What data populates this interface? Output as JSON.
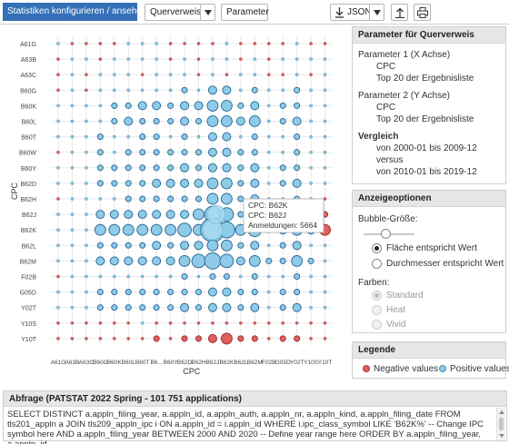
{
  "toolbar": {
    "title": "Statistiken konfigurieren / ansehen",
    "querverweis_label": "Querverweis",
    "parameter_label": "Parameter",
    "export_label": "JSON"
  },
  "chart_data": {
    "type": "scatter",
    "subtype": "bubble-matrix",
    "xlabel": "CPC",
    "ylabel": "CPC",
    "y_categories": [
      "A61G",
      "A63B",
      "A63C",
      "B60G",
      "B60K",
      "B60L",
      "B60T",
      "B60W",
      "B60Y",
      "B62D",
      "B62H",
      "B62J",
      "B62K",
      "B62L",
      "B62M",
      "F02B",
      "G05D",
      "Y02T",
      "Y10S",
      "Y10T"
    ],
    "x_categories": [
      "A61G",
      "A63B",
      "A63C",
      "B60G",
      "B60K",
      "B60L",
      "B60T",
      "B6...",
      "B60Y",
      "B62D",
      "B62H",
      "B62J",
      "B62K",
      "B62L",
      "B62M",
      "F02B",
      "G05D",
      "Y02T",
      "Y10S",
      "Y10T"
    ],
    "grid": true,
    "size_scale": 10,
    "series": [
      {
        "name": "Negative values",
        "color": "#e06060"
      },
      {
        "name": "Positive values",
        "color": "#8ecbe8"
      }
    ],
    "values": [
      [
        1,
        -1,
        -1,
        -1,
        -1,
        1,
        1,
        1,
        -1,
        -1,
        -1,
        -1,
        1,
        -1,
        -1,
        -1,
        -1,
        1,
        -1,
        -1
      ],
      [
        -1,
        1,
        1,
        -1,
        1,
        1,
        1,
        1,
        -1,
        1,
        -1,
        1,
        1,
        -1,
        1,
        -1,
        1,
        1,
        1,
        1
      ],
      [
        -1,
        1,
        -1,
        1,
        1,
        1,
        -1,
        1,
        1,
        1,
        -1,
        1,
        -1,
        1,
        1,
        -1,
        -1,
        1,
        -1,
        1
      ],
      [
        -1,
        1,
        -1,
        1,
        1,
        1,
        1,
        1,
        1,
        2,
        1,
        3,
        3,
        1,
        2,
        1,
        1,
        2,
        1,
        1
      ],
      [
        1,
        1,
        1,
        1,
        2,
        2,
        3,
        3,
        2,
        3,
        3,
        4,
        4,
        2,
        3,
        1,
        2,
        2,
        1,
        1
      ],
      [
        1,
        1,
        1,
        1,
        2,
        3,
        2,
        2,
        2,
        3,
        2,
        4,
        4,
        3,
        4,
        1,
        2,
        3,
        1,
        1
      ],
      [
        1,
        1,
        1,
        2,
        1,
        1,
        2,
        2,
        1,
        2,
        1,
        3,
        3,
        1,
        2,
        1,
        1,
        2,
        1,
        1
      ],
      [
        -1,
        1,
        1,
        2,
        1,
        2,
        2,
        2,
        2,
        2,
        2,
        3,
        3,
        2,
        2,
        1,
        1,
        2,
        1,
        1
      ],
      [
        1,
        1,
        1,
        2,
        2,
        2,
        2,
        2,
        2,
        3,
        2,
        3,
        3,
        2,
        3,
        1,
        2,
        2,
        1,
        1
      ],
      [
        1,
        1,
        1,
        2,
        2,
        2,
        2,
        3,
        3,
        3,
        3,
        4,
        4,
        2,
        3,
        1,
        2,
        3,
        1,
        1
      ],
      [
        -1,
        1,
        1,
        1,
        1,
        2,
        2,
        2,
        2,
        2,
        2,
        4,
        4,
        2,
        3,
        1,
        1,
        2,
        1,
        -1
      ],
      [
        1,
        1,
        1,
        3,
        3,
        3,
        3,
        3,
        3,
        3,
        4,
        6,
        5,
        2,
        4,
        2,
        2,
        3,
        2,
        -2
      ],
      [
        1,
        1,
        1,
        4,
        4,
        4,
        4,
        4,
        4,
        5,
        4,
        9,
        6,
        4,
        5,
        2,
        3,
        4,
        3,
        -4
      ],
      [
        1,
        1,
        1,
        2,
        2,
        2,
        2,
        3,
        2,
        3,
        3,
        4,
        4,
        2,
        3,
        1,
        2,
        3,
        1,
        1
      ],
      [
        1,
        1,
        1,
        3,
        3,
        3,
        3,
        3,
        3,
        4,
        5,
        6,
        5,
        3,
        4,
        2,
        2,
        4,
        2,
        1
      ],
      [
        -1,
        1,
        1,
        1,
        1,
        1,
        1,
        1,
        1,
        2,
        1,
        2,
        2,
        1,
        2,
        1,
        1,
        2,
        1,
        1
      ],
      [
        1,
        1,
        1,
        2,
        2,
        2,
        2,
        2,
        2,
        2,
        2,
        3,
        3,
        2,
        2,
        1,
        2,
        2,
        1,
        1
      ],
      [
        1,
        1,
        1,
        2,
        2,
        2,
        2,
        2,
        2,
        3,
        2,
        3,
        3,
        2,
        3,
        1,
        2,
        3,
        1,
        1
      ],
      [
        -1,
        -1,
        -1,
        -1,
        -1,
        -1,
        1,
        -1,
        -1,
        -1,
        -1,
        -1,
        -1,
        -1,
        -1,
        -1,
        -1,
        -1,
        -1,
        -1
      ],
      [
        -1,
        -1,
        -1,
        -1,
        -1,
        -1,
        -1,
        -2,
        -1,
        -2,
        -2,
        -3,
        -4,
        -2,
        -2,
        -1,
        -2,
        -2,
        -1,
        -1
      ]
    ]
  },
  "tooltip": {
    "line1": "CPC: B62K",
    "line2": "CPC: B62J",
    "line3": "Anmeldungen: 5664"
  },
  "params_panel": {
    "title": "Parameter für Querverweis",
    "p1_label": "Parameter 1 (X Achse)",
    "p1_value": "CPC",
    "p1_sub": "Top 20 der Ergebnisliste",
    "p2_label": "Parameter 2 (Y Achse)",
    "p2_value": "CPC",
    "p2_sub": "Top 20 der Ergebnisliste",
    "cmp_label": "Vergleich",
    "cmp_from": "von 2000-01 bis 2009-12",
    "cmp_versus": "versus",
    "cmp_to": "von 2010-01 bis 2019-12"
  },
  "display_panel": {
    "title": "Anzeigeoptionen",
    "bubble_label": "Bubble-Größe:",
    "bubble_size_fraction": 0.45,
    "opt_area": "Fläche entspricht Wert",
    "opt_diameter": "Durchmesser entspricht Wert",
    "colors_label": "Farben:",
    "color_standard": "Standard",
    "color_heat": "Heat",
    "color_vivid": "Vivid"
  },
  "legend_panel": {
    "title": "Legende",
    "negative": "Negative values",
    "positive": "Positive values",
    "negative_color": "#e06060",
    "positive_color": "#8ecbe8"
  },
  "query_panel": {
    "title": "Abfrage (PATSTAT 2022 Spring - 101 751 applications)",
    "sql": "SELECT DISTINCT a.appln_filing_year, a.appln_id, a.appln_auth, a.appln_nr, a.appln_kind, a.appln_filing_date FROM tls201_appln a JOIN tls209_appln_ipc i ON a.appln_id = i.appln_id WHERE i.ipc_class_symbol LIKE 'B62K%' -- Change IPC symbol here AND a.appln_filing_year BETWEEN 2000 AND 2020 -- Define year range here ORDER BY a.appln_filing_year, a.appln_id"
  }
}
